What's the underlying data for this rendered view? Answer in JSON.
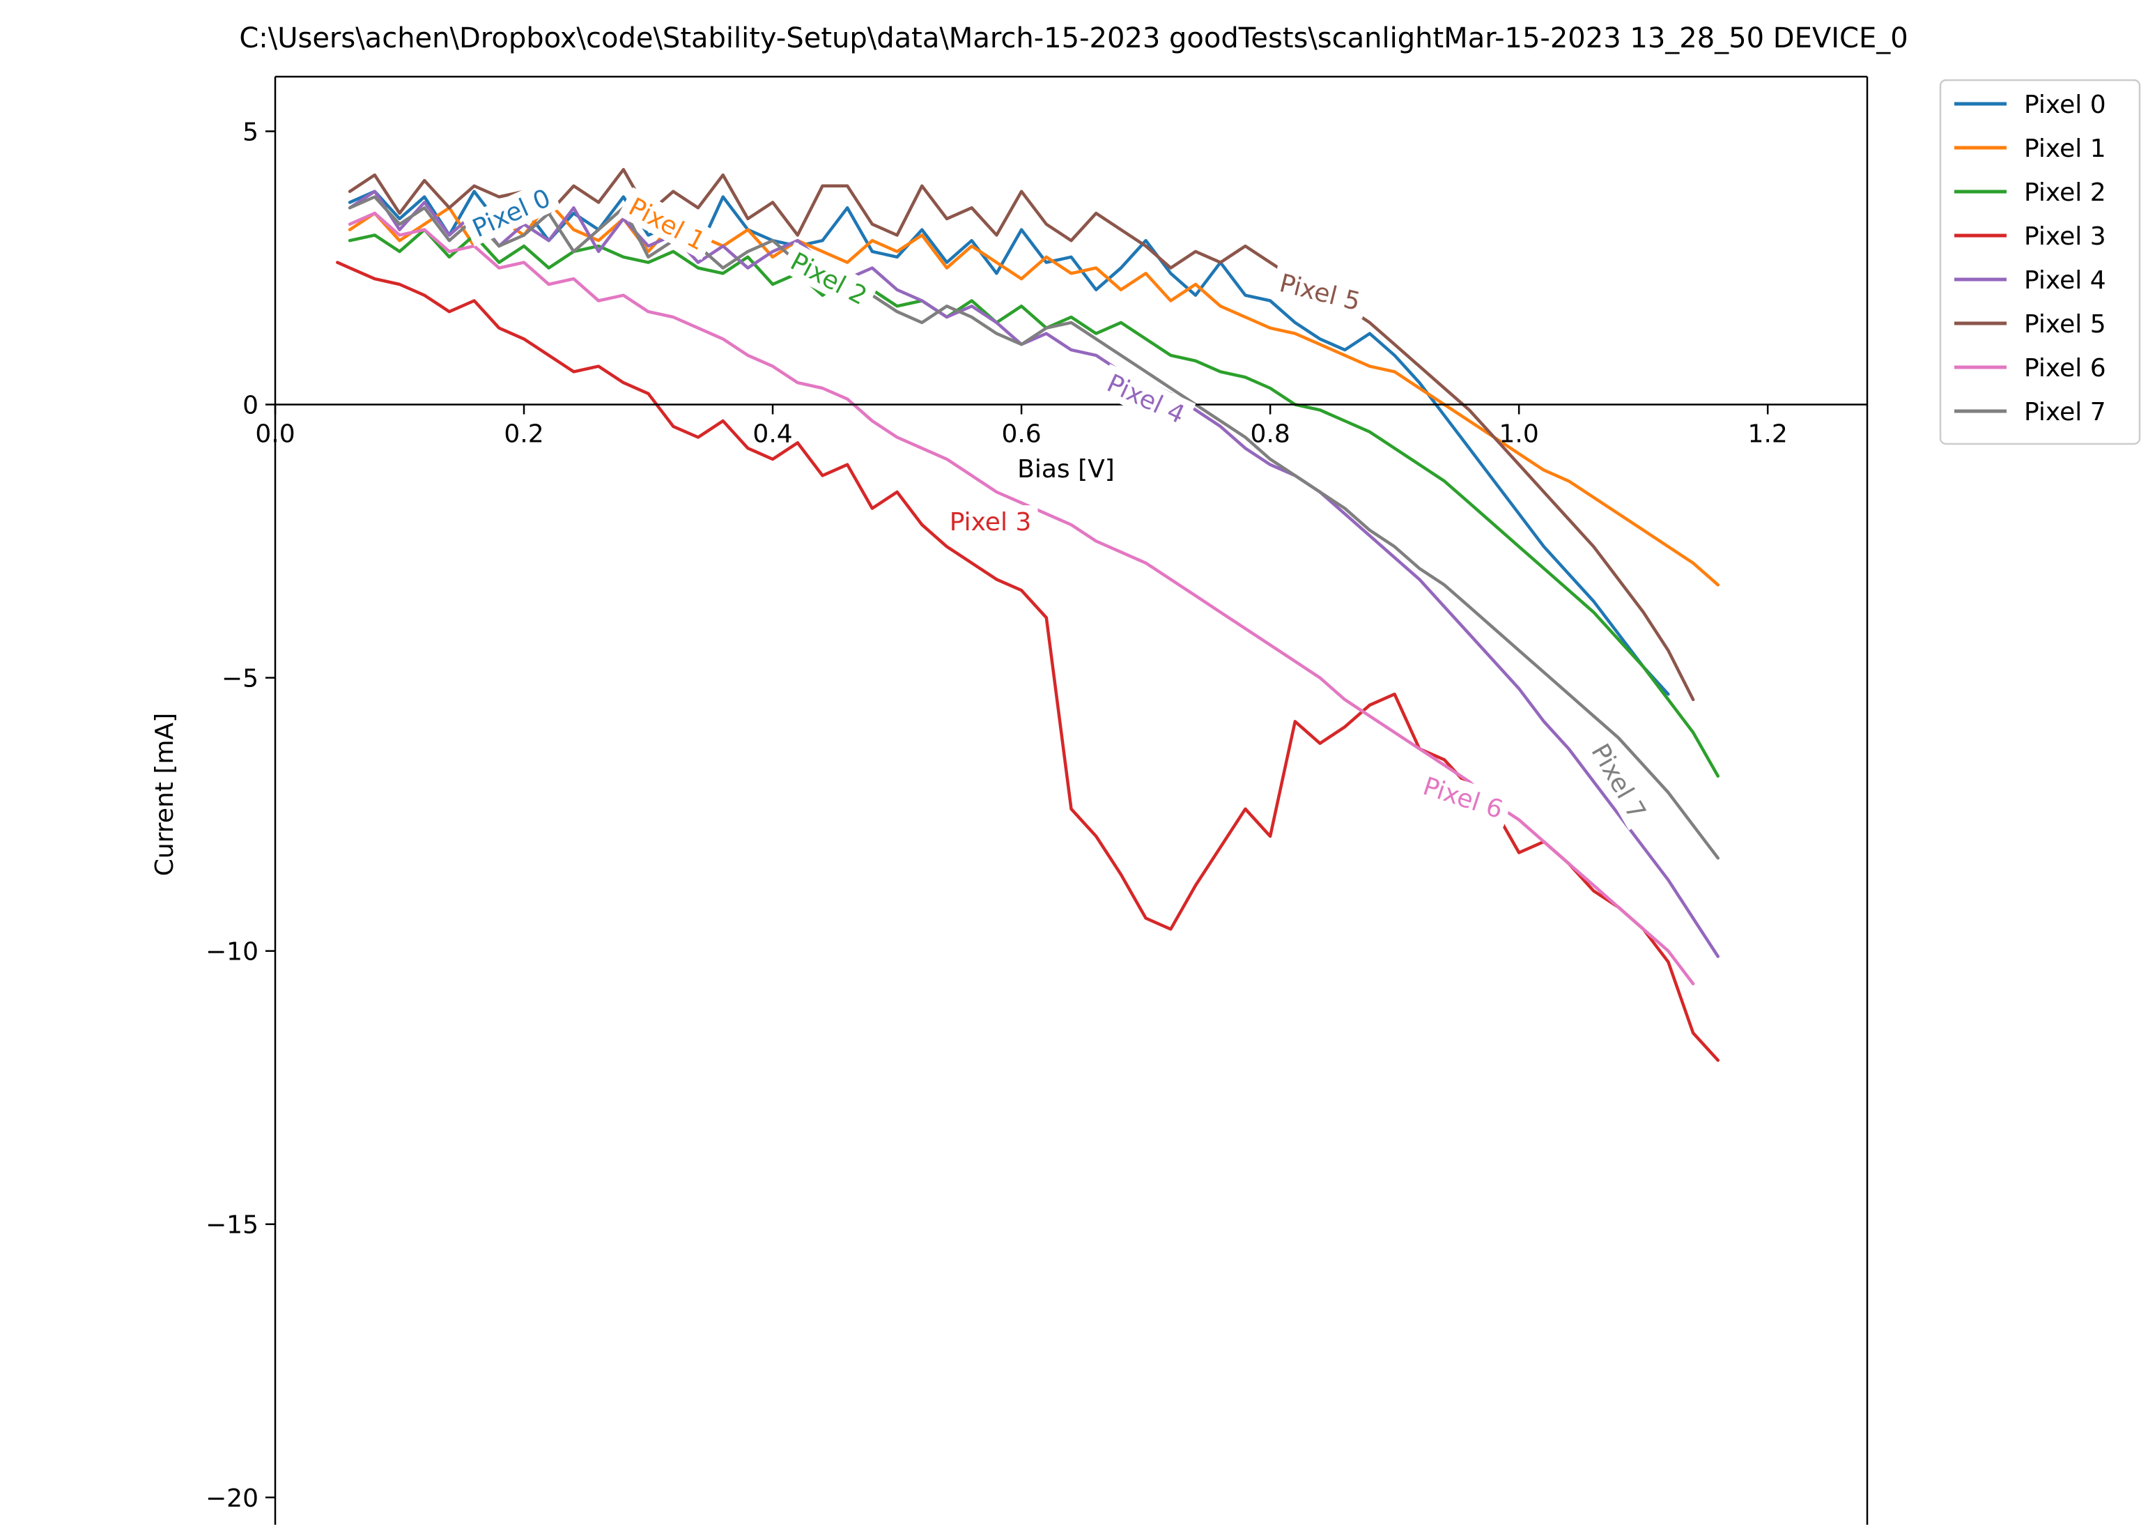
{
  "chart_data": {
    "type": "line",
    "title": "C:\\Users\\achen\\Dropbox\\code\\Stability-Setup\\data\\March-15-2023 goodTests\\scanlightMar-15-2023 13_28_50 DEVICE_0",
    "xlabel": "Bias [V]",
    "ylabel": "Current [mA]",
    "xlim": [
      0.0,
      1.28
    ],
    "ylim": [
      -20.5,
      6.0
    ],
    "xticks": [
      0.0,
      0.2,
      0.4,
      0.6,
      0.8,
      1.0,
      1.2
    ],
    "xtick_labels": [
      "0.0",
      "0.2",
      "0.4",
      "0.6",
      "0.8",
      "1.0",
      "1.2"
    ],
    "yticks": [
      5,
      0,
      -5,
      -10,
      -15,
      -20
    ],
    "ytick_labels": [
      "5",
      "0",
      "−5",
      "−10",
      "−15",
      "−20"
    ],
    "grid": false,
    "legend_position": "outside-top-right",
    "series": [
      {
        "name": "Pixel 0",
        "color": "#1f77b4",
        "label": "Pixel 0",
        "label_at": [
          0.19,
          3.5
        ],
        "label_angle": -24,
        "x": [
          0.06,
          0.08,
          0.1,
          0.12,
          0.14,
          0.16,
          0.18,
          0.2,
          0.22,
          0.24,
          0.26,
          0.28,
          0.3,
          0.32,
          0.34,
          0.36,
          0.38,
          0.4,
          0.42,
          0.44,
          0.46,
          0.48,
          0.5,
          0.52,
          0.54,
          0.56,
          0.58,
          0.6,
          0.62,
          0.64,
          0.66,
          0.68,
          0.7,
          0.72,
          0.74,
          0.76,
          0.78,
          0.8,
          0.82,
          0.84,
          0.86,
          0.88,
          0.9,
          0.92,
          0.94,
          0.96,
          0.98,
          1.0,
          1.02,
          1.04,
          1.06,
          1.08,
          1.1,
          1.12
        ],
        "y": [
          3.7,
          3.9,
          3.4,
          3.8,
          3.1,
          3.9,
          3.3,
          3.6,
          3.0,
          3.5,
          3.2,
          3.8,
          3.1,
          3.3,
          2.8,
          3.8,
          3.2,
          3.0,
          2.9,
          3.0,
          3.6,
          2.8,
          2.7,
          3.2,
          2.6,
          3.0,
          2.4,
          3.2,
          2.6,
          2.7,
          2.1,
          2.5,
          3.0,
          2.4,
          2.0,
          2.6,
          2.0,
          1.9,
          1.5,
          1.2,
          1.0,
          1.3,
          0.9,
          0.4,
          -0.2,
          -0.8,
          -1.4,
          -2.0,
          -2.6,
          -3.1,
          -3.6,
          -4.2,
          -4.8,
          -5.3
        ]
      },
      {
        "name": "Pixel 1",
        "color": "#ff7f0e",
        "label": "Pixel 1",
        "label_at": [
          0.315,
          3.3
        ],
        "label_angle": 28,
        "x": [
          0.06,
          0.08,
          0.1,
          0.12,
          0.14,
          0.16,
          0.18,
          0.2,
          0.22,
          0.24,
          0.26,
          0.28,
          0.3,
          0.32,
          0.34,
          0.36,
          0.38,
          0.4,
          0.42,
          0.44,
          0.46,
          0.48,
          0.5,
          0.52,
          0.54,
          0.56,
          0.58,
          0.6,
          0.62,
          0.64,
          0.66,
          0.68,
          0.7,
          0.72,
          0.74,
          0.76,
          0.78,
          0.8,
          0.82,
          0.84,
          0.86,
          0.88,
          0.9,
          0.92,
          0.94,
          0.96,
          0.98,
          1.0,
          1.02,
          1.04,
          1.06,
          1.08,
          1.1,
          1.12,
          1.14,
          1.16
        ],
        "y": [
          3.2,
          3.5,
          3.0,
          3.3,
          3.6,
          2.9,
          3.4,
          3.1,
          3.7,
          3.2,
          3.0,
          3.4,
          2.8,
          3.3,
          3.1,
          2.9,
          3.2,
          2.7,
          3.0,
          2.8,
          2.6,
          3.0,
          2.8,
          3.1,
          2.5,
          2.9,
          2.6,
          2.3,
          2.7,
          2.4,
          2.5,
          2.1,
          2.4,
          1.9,
          2.2,
          1.8,
          1.6,
          1.4,
          1.3,
          1.1,
          0.9,
          0.7,
          0.6,
          0.3,
          0.0,
          -0.3,
          -0.6,
          -0.9,
          -1.2,
          -1.4,
          -1.7,
          -2.0,
          -2.3,
          -2.6,
          -2.9,
          -3.3
        ]
      },
      {
        "name": "Pixel 2",
        "color": "#2ca02c",
        "label": "Pixel 2",
        "label_at": [
          0.445,
          2.3
        ],
        "label_angle": 28,
        "x": [
          0.06,
          0.08,
          0.1,
          0.12,
          0.14,
          0.16,
          0.18,
          0.2,
          0.22,
          0.24,
          0.26,
          0.28,
          0.3,
          0.32,
          0.34,
          0.36,
          0.38,
          0.4,
          0.42,
          0.44,
          0.46,
          0.48,
          0.5,
          0.52,
          0.54,
          0.56,
          0.58,
          0.6,
          0.62,
          0.64,
          0.66,
          0.68,
          0.7,
          0.72,
          0.74,
          0.76,
          0.78,
          0.8,
          0.82,
          0.84,
          0.86,
          0.88,
          0.9,
          0.92,
          0.94,
          0.96,
          0.98,
          1.0,
          1.02,
          1.04,
          1.06,
          1.08,
          1.1,
          1.12,
          1.14,
          1.16
        ],
        "y": [
          3.0,
          3.1,
          2.8,
          3.2,
          2.7,
          3.1,
          2.6,
          2.9,
          2.5,
          2.8,
          2.9,
          2.7,
          2.6,
          2.8,
          2.5,
          2.4,
          2.7,
          2.2,
          2.4,
          2.0,
          2.3,
          2.1,
          1.8,
          1.9,
          1.6,
          1.9,
          1.5,
          1.8,
          1.4,
          1.6,
          1.3,
          1.5,
          1.2,
          0.9,
          0.8,
          0.6,
          0.5,
          0.3,
          0.0,
          -0.1,
          -0.3,
          -0.5,
          -0.8,
          -1.1,
          -1.4,
          -1.8,
          -2.2,
          -2.6,
          -3.0,
          -3.4,
          -3.8,
          -4.3,
          -4.8,
          -5.4,
          -6.0,
          -6.8
        ]
      },
      {
        "name": "Pixel 3",
        "color": "#d62728",
        "label": "Pixel 3",
        "label_at": [
          0.575,
          -2.15
        ],
        "label_angle": 0,
        "x": [
          0.05,
          0.06,
          0.07,
          0.08,
          0.1,
          0.12,
          0.14,
          0.16,
          0.18,
          0.2,
          0.22,
          0.24,
          0.26,
          0.28,
          0.3,
          0.32,
          0.34,
          0.36,
          0.38,
          0.4,
          0.42,
          0.44,
          0.46,
          0.48,
          0.5,
          0.52,
          0.54,
          0.56,
          0.58,
          0.6,
          0.62,
          0.64,
          0.66,
          0.68,
          0.7,
          0.72,
          0.74,
          0.76,
          0.78,
          0.8,
          0.82,
          0.84,
          0.86,
          0.88,
          0.9,
          0.92,
          0.94,
          0.96,
          0.98,
          1.0,
          1.02,
          1.04,
          1.06,
          1.08,
          1.1,
          1.12,
          1.14,
          1.16
        ],
        "y": [
          2.6,
          2.5,
          2.4,
          2.3,
          2.2,
          2.0,
          1.7,
          1.9,
          1.4,
          1.2,
          0.9,
          0.6,
          0.7,
          0.4,
          0.2,
          -0.4,
          -0.6,
          -0.3,
          -0.8,
          -1.0,
          -0.7,
          -1.3,
          -1.1,
          -1.9,
          -1.6,
          -2.2,
          -2.6,
          -2.9,
          -3.2,
          -3.4,
          -3.9,
          -7.4,
          -7.9,
          -8.6,
          -9.4,
          -9.6,
          -8.8,
          -8.1,
          -7.4,
          -7.9,
          -5.8,
          -6.2,
          -5.9,
          -5.5,
          -5.3,
          -6.3,
          -6.5,
          -7.0,
          -7.4,
          -8.2,
          -8.0,
          -8.4,
          -8.9,
          -9.2,
          -9.6,
          -10.2,
          -11.5,
          -12.0
        ]
      },
      {
        "name": "Pixel 4",
        "color": "#9467bd",
        "label": "Pixel 4",
        "label_at": [
          0.7,
          0.1
        ],
        "label_angle": 25,
        "x": [
          0.06,
          0.08,
          0.1,
          0.12,
          0.14,
          0.16,
          0.18,
          0.2,
          0.22,
          0.24,
          0.26,
          0.28,
          0.3,
          0.32,
          0.34,
          0.36,
          0.38,
          0.4,
          0.42,
          0.44,
          0.46,
          0.48,
          0.5,
          0.52,
          0.54,
          0.56,
          0.58,
          0.6,
          0.62,
          0.64,
          0.66,
          0.68,
          0.7,
          0.72,
          0.74,
          0.76,
          0.78,
          0.8,
          0.82,
          0.84,
          0.86,
          0.88,
          0.9,
          0.92,
          0.94,
          0.96,
          0.98,
          1.0,
          1.02,
          1.04,
          1.06,
          1.08,
          1.1,
          1.12,
          1.14,
          1.16
        ],
        "y": [
          3.6,
          3.9,
          3.2,
          3.7,
          3.1,
          3.5,
          2.9,
          3.3,
          3.0,
          3.6,
          2.8,
          3.4,
          2.9,
          3.1,
          2.6,
          2.9,
          2.5,
          2.8,
          3.0,
          2.6,
          2.3,
          2.5,
          2.1,
          1.9,
          1.6,
          1.8,
          1.5,
          1.1,
          1.3,
          1.0,
          0.9,
          0.6,
          0.4,
          0.2,
          -0.1,
          -0.4,
          -0.8,
          -1.1,
          -1.3,
          -1.6,
          -2.0,
          -2.4,
          -2.8,
          -3.2,
          -3.7,
          -4.2,
          -4.7,
          -5.2,
          -5.8,
          -6.3,
          -6.9,
          -7.5,
          -8.1,
          -8.7,
          -9.4,
          -10.1
        ]
      },
      {
        "name": "Pixel 5",
        "color": "#8c564b",
        "label": "Pixel 5",
        "label_at": [
          0.84,
          2.05
        ],
        "label_angle": 14,
        "x": [
          0.06,
          0.08,
          0.1,
          0.12,
          0.14,
          0.16,
          0.18,
          0.2,
          0.22,
          0.24,
          0.26,
          0.28,
          0.3,
          0.32,
          0.34,
          0.36,
          0.38,
          0.4,
          0.42,
          0.44,
          0.46,
          0.48,
          0.5,
          0.52,
          0.54,
          0.56,
          0.58,
          0.6,
          0.62,
          0.64,
          0.66,
          0.68,
          0.7,
          0.72,
          0.74,
          0.76,
          0.78,
          0.8,
          0.82,
          0.84,
          0.86,
          0.88,
          0.9,
          0.92,
          0.94,
          0.96,
          0.98,
          1.0,
          1.02,
          1.04,
          1.06,
          1.08,
          1.1,
          1.12,
          1.14
        ],
        "y": [
          3.9,
          4.2,
          3.5,
          4.1,
          3.6,
          4.0,
          3.8,
          3.9,
          3.5,
          4.0,
          3.7,
          4.3,
          3.5,
          3.9,
          3.6,
          4.2,
          3.4,
          3.7,
          3.1,
          4.0,
          4.0,
          3.3,
          3.1,
          4.0,
          3.4,
          3.6,
          3.1,
          3.9,
          3.3,
          3.0,
          3.5,
          3.2,
          2.9,
          2.5,
          2.8,
          2.6,
          2.9,
          2.6,
          2.3,
          2.0,
          1.8,
          1.5,
          1.1,
          0.7,
          0.3,
          -0.1,
          -0.6,
          -1.1,
          -1.6,
          -2.1,
          -2.6,
          -3.2,
          -3.8,
          -4.5,
          -5.4
        ]
      },
      {
        "name": "Pixel 6",
        "color": "#e377c2",
        "label": "Pixel 6",
        "label_at": [
          0.955,
          -7.2
        ],
        "label_angle": 18,
        "x": [
          0.06,
          0.08,
          0.1,
          0.12,
          0.14,
          0.16,
          0.18,
          0.2,
          0.22,
          0.24,
          0.26,
          0.28,
          0.3,
          0.32,
          0.34,
          0.36,
          0.38,
          0.4,
          0.42,
          0.44,
          0.46,
          0.48,
          0.5,
          0.52,
          0.54,
          0.56,
          0.58,
          0.6,
          0.62,
          0.64,
          0.66,
          0.68,
          0.7,
          0.72,
          0.74,
          0.76,
          0.78,
          0.8,
          0.82,
          0.84,
          0.86,
          0.88,
          0.9,
          0.92,
          0.94,
          0.96,
          0.98,
          1.0,
          1.02,
          1.04,
          1.06,
          1.08,
          1.1,
          1.12,
          1.14
        ],
        "y": [
          3.3,
          3.5,
          3.1,
          3.2,
          2.8,
          2.9,
          2.5,
          2.6,
          2.2,
          2.3,
          1.9,
          2.0,
          1.7,
          1.6,
          1.4,
          1.2,
          0.9,
          0.7,
          0.4,
          0.3,
          0.1,
          -0.3,
          -0.6,
          -0.8,
          -1.0,
          -1.3,
          -1.6,
          -1.8,
          -2.0,
          -2.2,
          -2.5,
          -2.7,
          -2.9,
          -3.2,
          -3.5,
          -3.8,
          -4.1,
          -4.4,
          -4.7,
          -5.0,
          -5.4,
          -5.7,
          -6.0,
          -6.3,
          -6.6,
          -6.9,
          -7.3,
          -7.6,
          -8.0,
          -8.4,
          -8.8,
          -9.2,
          -9.6,
          -10.0,
          -10.6
        ]
      },
      {
        "name": "Pixel 7",
        "color": "#7f7f7f",
        "label": "Pixel 7",
        "label_at": [
          1.08,
          -6.9
        ],
        "label_angle": 60,
        "x": [
          0.06,
          0.08,
          0.1,
          0.12,
          0.14,
          0.16,
          0.18,
          0.2,
          0.22,
          0.24,
          0.26,
          0.28,
          0.3,
          0.32,
          0.34,
          0.36,
          0.38,
          0.4,
          0.42,
          0.44,
          0.46,
          0.48,
          0.5,
          0.52,
          0.54,
          0.56,
          0.58,
          0.6,
          0.62,
          0.64,
          0.66,
          0.68,
          0.7,
          0.72,
          0.74,
          0.76,
          0.78,
          0.8,
          0.82,
          0.84,
          0.86,
          0.88,
          0.9,
          0.92,
          0.94,
          0.96,
          0.98,
          1.0,
          1.02,
          1.04,
          1.06,
          1.08,
          1.1,
          1.12,
          1.14,
          1.16
        ],
        "y": [
          3.6,
          3.8,
          3.3,
          3.6,
          3.0,
          3.4,
          2.9,
          3.1,
          3.5,
          2.8,
          3.2,
          3.6,
          2.7,
          3.0,
          2.9,
          2.5,
          2.8,
          3.0,
          2.6,
          2.4,
          2.1,
          2.0,
          1.7,
          1.5,
          1.8,
          1.6,
          1.3,
          1.1,
          1.4,
          1.5,
          1.2,
          0.9,
          0.6,
          0.3,
          0.0,
          -0.3,
          -0.6,
          -1.0,
          -1.3,
          -1.6,
          -1.9,
          -2.3,
          -2.6,
          -3.0,
          -3.3,
          -3.7,
          -4.1,
          -4.5,
          -4.9,
          -5.3,
          -5.7,
          -6.1,
          -6.6,
          -7.1,
          -7.7,
          -8.3
        ]
      }
    ]
  }
}
